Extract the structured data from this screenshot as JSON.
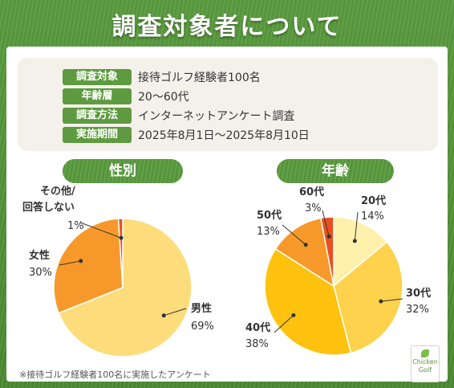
{
  "title": "調査対象者について",
  "survey_info": [
    {
      "label": "調査対象",
      "value": "接待ゴルフ経験者100名"
    },
    {
      "label": "年齢層",
      "value": "20〜60代"
    },
    {
      "label": "調査方法",
      "value": "インターネットアンケート調査"
    },
    {
      "label": "実施期間",
      "value": "2025年8月1日〜2025年8月10日"
    }
  ],
  "colors": {
    "green": "#5e9a3f",
    "male": "#fddc7b",
    "female": "#f7992a",
    "other": "#e8511f",
    "age20": "#fff0ab",
    "age30": "#ffd24d",
    "age40": "#ffc20e",
    "age50": "#f7992a",
    "age60": "#e8511f"
  },
  "chart_data": [
    {
      "type": "pie",
      "title": "性別",
      "slices": [
        {
          "label": "男性",
          "value": 69,
          "value_label": "69%"
        },
        {
          "label": "女性",
          "value": 30,
          "value_label": "30%"
        },
        {
          "label": "その他/\n回答しない",
          "value": 1,
          "value_label": "1%"
        }
      ]
    },
    {
      "type": "pie",
      "title": "年齢",
      "slices": [
        {
          "label": "20代",
          "value": 14,
          "value_label": "14%"
        },
        {
          "label": "30代",
          "value": 32,
          "value_label": "32%"
        },
        {
          "label": "40代",
          "value": 38,
          "value_label": "38%"
        },
        {
          "label": "50代",
          "value": 13,
          "value_label": "13%"
        },
        {
          "label": "60代",
          "value": 3,
          "value_label": "3%"
        }
      ]
    }
  ],
  "footnote": "※接待ゴルフ経験者100名に実施したアンケート",
  "logo": {
    "line1": "Chicken",
    "line2": "Golf"
  }
}
